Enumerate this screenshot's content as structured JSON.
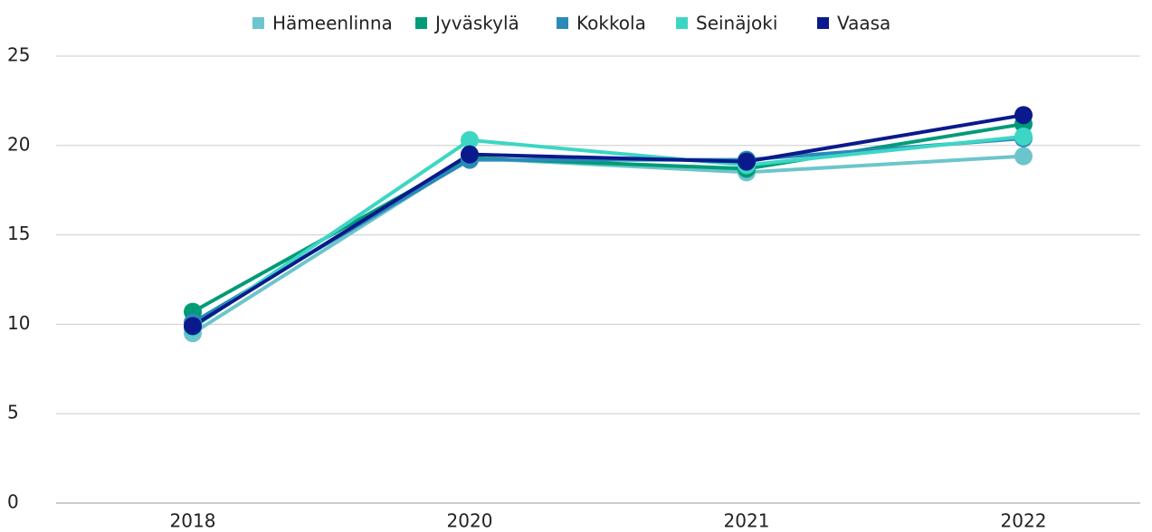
{
  "chart_data": {
    "type": "line",
    "categories": [
      "2018",
      "2020",
      "2021",
      "2022"
    ],
    "series": [
      {
        "name": "Hämeenlinna",
        "color": "#6cc5cc",
        "values": [
          9.5,
          19.3,
          18.5,
          19.4
        ]
      },
      {
        "name": "Jyväskylä",
        "color": "#009b77",
        "values": [
          10.7,
          19.3,
          18.7,
          21.2
        ]
      },
      {
        "name": "Kokkola",
        "color": "#2a8ab8",
        "values": [
          10.1,
          19.2,
          19.2,
          20.4
        ]
      },
      {
        "name": "Seinäjoki",
        "color": "#3dd6c4",
        "values": [
          9.8,
          20.3,
          18.9,
          20.5
        ]
      },
      {
        "name": "Vaasa",
        "color": "#0a1a8c",
        "values": [
          9.9,
          19.5,
          19.1,
          21.7
        ]
      }
    ],
    "ylim": [
      0,
      25
    ],
    "yticks": [
      0,
      5,
      10,
      15,
      20,
      25
    ],
    "grid": true,
    "legend": "top"
  }
}
